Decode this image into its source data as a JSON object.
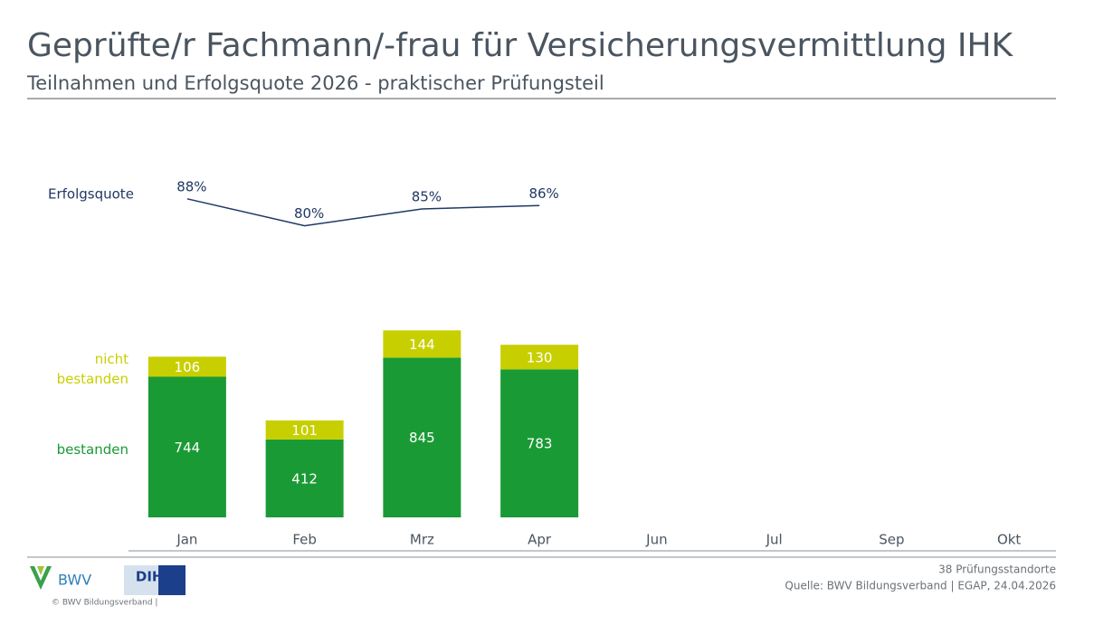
{
  "chart_data": {
    "type": "bar",
    "title": "Geprüfte/r Fachmann/-frau für Versicherungsvermittlung IHK",
    "subtitle": "Teilnahmen und Erfolgsquote 2026 - praktischer Prüfungsteil",
    "categories": [
      "Jan",
      "Feb",
      "Mrz",
      "Apr",
      "Jun",
      "Jul",
      "Sep",
      "Okt"
    ],
    "ylim": [
      0,
      1000
    ],
    "y2lim": [
      70,
      100
    ],
    "series": [
      {
        "name": "bestanden",
        "color": "#1a9a35",
        "values": [
          744,
          412,
          845,
          783,
          null,
          null,
          null,
          null
        ]
      },
      {
        "name": "nicht bestanden",
        "color": "#c8cf00",
        "values": [
          106,
          101,
          144,
          130,
          null,
          null,
          null,
          null
        ]
      },
      {
        "name": "Erfolgsquote",
        "color": "#1f3864",
        "type": "line",
        "axis": "y2",
        "values": [
          88,
          80,
          85,
          86,
          null,
          null,
          null,
          null
        ],
        "value_labels": [
          "88%",
          "80%",
          "85%",
          "86%",
          null,
          null,
          null,
          null
        ]
      }
    ]
  },
  "footer": {
    "locations": "38 Prüfungsstandorte",
    "source": "Quelle: BWV Bildungsverband | EGAP, 24.04.2026",
    "copyright": "© BWV Bildungsverband |",
    "logo_bwv": "BWV",
    "logo_dihk": "DIHK"
  }
}
